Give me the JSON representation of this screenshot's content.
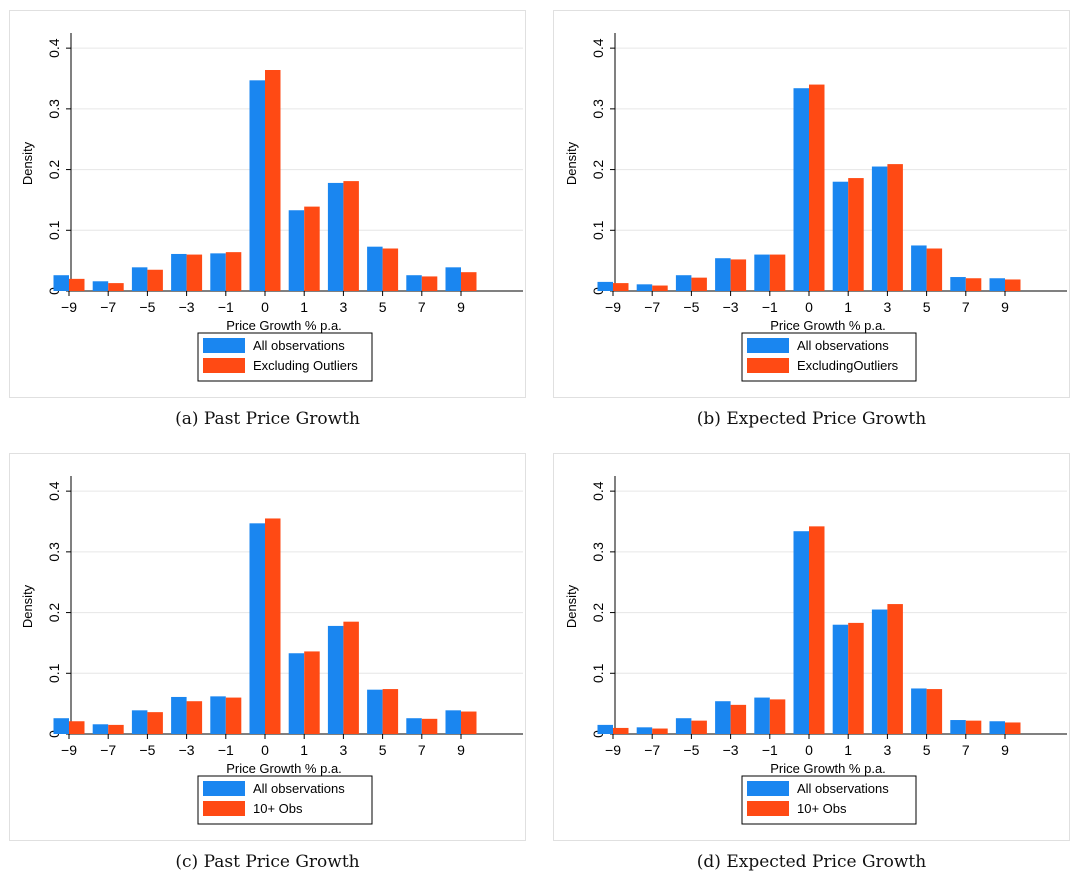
{
  "colors": {
    "all": "#1a86f0",
    "alt": "#ff4a14"
  },
  "chart_data": [
    {
      "type": "bar",
      "caption": "(a) Past Price Growth",
      "xlabel": "Price Growth  % p.a.",
      "ylabel": "Density",
      "ylim": [
        0,
        0.42
      ],
      "yticks": [
        "0",
        "0.1",
        "0.2",
        "0.3",
        "0.4"
      ],
      "ytick_values": [
        0,
        0.1,
        0.2,
        0.3,
        0.4
      ],
      "categories": [
        "−9",
        "−7",
        "−5",
        "−3",
        "−1",
        "0",
        "1",
        "3",
        "5",
        "7",
        "9"
      ],
      "grid": true,
      "legend_position": "bottom",
      "series": [
        {
          "name": "All observations",
          "values": [
            0.026,
            0.016,
            0.039,
            0.061,
            0.062,
            0.347,
            0.133,
            0.178,
            0.073,
            0.026,
            0.039
          ]
        },
        {
          "name": "Excluding Outliers",
          "values": [
            0.02,
            0.013,
            0.035,
            0.06,
            0.064,
            0.364,
            0.139,
            0.181,
            0.07,
            0.024,
            0.031
          ]
        }
      ]
    },
    {
      "type": "bar",
      "caption": "(b) Expected Price Growth",
      "xlabel": "Price Growth  % p.a.",
      "ylabel": "Density",
      "ylim": [
        0,
        0.42
      ],
      "yticks": [
        "0",
        "0.1",
        "0.2",
        "0.3",
        "0.4"
      ],
      "ytick_values": [
        0,
        0.1,
        0.2,
        0.3,
        0.4
      ],
      "categories": [
        "−9",
        "−7",
        "−5",
        "−3",
        "−1",
        "0",
        "1",
        "3",
        "5",
        "7",
        "9"
      ],
      "grid": true,
      "legend_position": "bottom",
      "series": [
        {
          "name": "All observations",
          "values": [
            0.015,
            0.011,
            0.026,
            0.054,
            0.06,
            0.334,
            0.18,
            0.205,
            0.075,
            0.023,
            0.021
          ]
        },
        {
          "name": "ExcludingOutliers",
          "values": [
            0.013,
            0.009,
            0.022,
            0.052,
            0.06,
            0.34,
            0.186,
            0.209,
            0.07,
            0.021,
            0.019
          ]
        }
      ]
    },
    {
      "type": "bar",
      "caption": "(c) Past Price Growth",
      "xlabel": "Price Growth  % p.a.",
      "ylabel": "Density",
      "ylim": [
        0,
        0.42
      ],
      "yticks": [
        "0",
        "0.1",
        "0.2",
        "0.3",
        "0.4"
      ],
      "ytick_values": [
        0,
        0.1,
        0.2,
        0.3,
        0.4
      ],
      "categories": [
        "−9",
        "−7",
        "−5",
        "−3",
        "−1",
        "0",
        "1",
        "3",
        "5",
        "7",
        "9"
      ],
      "grid": true,
      "legend_position": "bottom",
      "series": [
        {
          "name": "All observations",
          "values": [
            0.026,
            0.016,
            0.039,
            0.061,
            0.062,
            0.347,
            0.133,
            0.178,
            0.073,
            0.026,
            0.039
          ]
        },
        {
          "name": "10+ Obs",
          "values": [
            0.021,
            0.015,
            0.036,
            0.054,
            0.06,
            0.355,
            0.136,
            0.185,
            0.074,
            0.025,
            0.037
          ]
        }
      ]
    },
    {
      "type": "bar",
      "caption": "(d) Expected Price Growth",
      "xlabel": "Price Growth  % p.a.",
      "ylabel": "Density",
      "ylim": [
        0,
        0.42
      ],
      "yticks": [
        "0",
        "0.1",
        "0.2",
        "0.3",
        "0.4"
      ],
      "ytick_values": [
        0,
        0.1,
        0.2,
        0.3,
        0.4
      ],
      "categories": [
        "−9",
        "−7",
        "−5",
        "−3",
        "−1",
        "0",
        "1",
        "3",
        "5",
        "7",
        "9"
      ],
      "grid": true,
      "legend_position": "bottom",
      "series": [
        {
          "name": "All observations",
          "values": [
            0.015,
            0.011,
            0.026,
            0.054,
            0.06,
            0.334,
            0.18,
            0.205,
            0.075,
            0.023,
            0.021
          ]
        },
        {
          "name": "10+ Obs",
          "values": [
            0.01,
            0.009,
            0.022,
            0.048,
            0.057,
            0.342,
            0.183,
            0.214,
            0.074,
            0.022,
            0.019
          ]
        }
      ]
    }
  ]
}
